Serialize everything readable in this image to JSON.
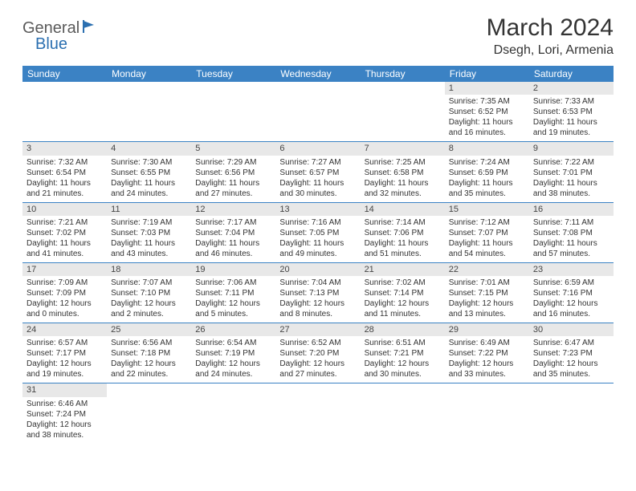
{
  "logo": {
    "part1": "General",
    "part2": "Blue"
  },
  "title": "March 2024",
  "location": "Dsegh, Lori, Armenia",
  "colors": {
    "header_bg": "#3b82c4",
    "header_fg": "#ffffff",
    "daynum_bg": "#e8e8e8",
    "border": "#3b82c4",
    "logo_gray": "#5a5a5a",
    "logo_blue": "#2b6fb0"
  },
  "day_headers": [
    "Sunday",
    "Monday",
    "Tuesday",
    "Wednesday",
    "Thursday",
    "Friday",
    "Saturday"
  ],
  "weeks": [
    [
      null,
      null,
      null,
      null,
      null,
      {
        "n": "1",
        "sr": "Sunrise: 7:35 AM",
        "ss": "Sunset: 6:52 PM",
        "dl1": "Daylight: 11 hours",
        "dl2": "and 16 minutes."
      },
      {
        "n": "2",
        "sr": "Sunrise: 7:33 AM",
        "ss": "Sunset: 6:53 PM",
        "dl1": "Daylight: 11 hours",
        "dl2": "and 19 minutes."
      }
    ],
    [
      {
        "n": "3",
        "sr": "Sunrise: 7:32 AM",
        "ss": "Sunset: 6:54 PM",
        "dl1": "Daylight: 11 hours",
        "dl2": "and 21 minutes."
      },
      {
        "n": "4",
        "sr": "Sunrise: 7:30 AM",
        "ss": "Sunset: 6:55 PM",
        "dl1": "Daylight: 11 hours",
        "dl2": "and 24 minutes."
      },
      {
        "n": "5",
        "sr": "Sunrise: 7:29 AM",
        "ss": "Sunset: 6:56 PM",
        "dl1": "Daylight: 11 hours",
        "dl2": "and 27 minutes."
      },
      {
        "n": "6",
        "sr": "Sunrise: 7:27 AM",
        "ss": "Sunset: 6:57 PM",
        "dl1": "Daylight: 11 hours",
        "dl2": "and 30 minutes."
      },
      {
        "n": "7",
        "sr": "Sunrise: 7:25 AM",
        "ss": "Sunset: 6:58 PM",
        "dl1": "Daylight: 11 hours",
        "dl2": "and 32 minutes."
      },
      {
        "n": "8",
        "sr": "Sunrise: 7:24 AM",
        "ss": "Sunset: 6:59 PM",
        "dl1": "Daylight: 11 hours",
        "dl2": "and 35 minutes."
      },
      {
        "n": "9",
        "sr": "Sunrise: 7:22 AM",
        "ss": "Sunset: 7:01 PM",
        "dl1": "Daylight: 11 hours",
        "dl2": "and 38 minutes."
      }
    ],
    [
      {
        "n": "10",
        "sr": "Sunrise: 7:21 AM",
        "ss": "Sunset: 7:02 PM",
        "dl1": "Daylight: 11 hours",
        "dl2": "and 41 minutes."
      },
      {
        "n": "11",
        "sr": "Sunrise: 7:19 AM",
        "ss": "Sunset: 7:03 PM",
        "dl1": "Daylight: 11 hours",
        "dl2": "and 43 minutes."
      },
      {
        "n": "12",
        "sr": "Sunrise: 7:17 AM",
        "ss": "Sunset: 7:04 PM",
        "dl1": "Daylight: 11 hours",
        "dl2": "and 46 minutes."
      },
      {
        "n": "13",
        "sr": "Sunrise: 7:16 AM",
        "ss": "Sunset: 7:05 PM",
        "dl1": "Daylight: 11 hours",
        "dl2": "and 49 minutes."
      },
      {
        "n": "14",
        "sr": "Sunrise: 7:14 AM",
        "ss": "Sunset: 7:06 PM",
        "dl1": "Daylight: 11 hours",
        "dl2": "and 51 minutes."
      },
      {
        "n": "15",
        "sr": "Sunrise: 7:12 AM",
        "ss": "Sunset: 7:07 PM",
        "dl1": "Daylight: 11 hours",
        "dl2": "and 54 minutes."
      },
      {
        "n": "16",
        "sr": "Sunrise: 7:11 AM",
        "ss": "Sunset: 7:08 PM",
        "dl1": "Daylight: 11 hours",
        "dl2": "and 57 minutes."
      }
    ],
    [
      {
        "n": "17",
        "sr": "Sunrise: 7:09 AM",
        "ss": "Sunset: 7:09 PM",
        "dl1": "Daylight: 12 hours",
        "dl2": "and 0 minutes."
      },
      {
        "n": "18",
        "sr": "Sunrise: 7:07 AM",
        "ss": "Sunset: 7:10 PM",
        "dl1": "Daylight: 12 hours",
        "dl2": "and 2 minutes."
      },
      {
        "n": "19",
        "sr": "Sunrise: 7:06 AM",
        "ss": "Sunset: 7:11 PM",
        "dl1": "Daylight: 12 hours",
        "dl2": "and 5 minutes."
      },
      {
        "n": "20",
        "sr": "Sunrise: 7:04 AM",
        "ss": "Sunset: 7:13 PM",
        "dl1": "Daylight: 12 hours",
        "dl2": "and 8 minutes."
      },
      {
        "n": "21",
        "sr": "Sunrise: 7:02 AM",
        "ss": "Sunset: 7:14 PM",
        "dl1": "Daylight: 12 hours",
        "dl2": "and 11 minutes."
      },
      {
        "n": "22",
        "sr": "Sunrise: 7:01 AM",
        "ss": "Sunset: 7:15 PM",
        "dl1": "Daylight: 12 hours",
        "dl2": "and 13 minutes."
      },
      {
        "n": "23",
        "sr": "Sunrise: 6:59 AM",
        "ss": "Sunset: 7:16 PM",
        "dl1": "Daylight: 12 hours",
        "dl2": "and 16 minutes."
      }
    ],
    [
      {
        "n": "24",
        "sr": "Sunrise: 6:57 AM",
        "ss": "Sunset: 7:17 PM",
        "dl1": "Daylight: 12 hours",
        "dl2": "and 19 minutes."
      },
      {
        "n": "25",
        "sr": "Sunrise: 6:56 AM",
        "ss": "Sunset: 7:18 PM",
        "dl1": "Daylight: 12 hours",
        "dl2": "and 22 minutes."
      },
      {
        "n": "26",
        "sr": "Sunrise: 6:54 AM",
        "ss": "Sunset: 7:19 PM",
        "dl1": "Daylight: 12 hours",
        "dl2": "and 24 minutes."
      },
      {
        "n": "27",
        "sr": "Sunrise: 6:52 AM",
        "ss": "Sunset: 7:20 PM",
        "dl1": "Daylight: 12 hours",
        "dl2": "and 27 minutes."
      },
      {
        "n": "28",
        "sr": "Sunrise: 6:51 AM",
        "ss": "Sunset: 7:21 PM",
        "dl1": "Daylight: 12 hours",
        "dl2": "and 30 minutes."
      },
      {
        "n": "29",
        "sr": "Sunrise: 6:49 AM",
        "ss": "Sunset: 7:22 PM",
        "dl1": "Daylight: 12 hours",
        "dl2": "and 33 minutes."
      },
      {
        "n": "30",
        "sr": "Sunrise: 6:47 AM",
        "ss": "Sunset: 7:23 PM",
        "dl1": "Daylight: 12 hours",
        "dl2": "and 35 minutes."
      }
    ],
    [
      {
        "n": "31",
        "sr": "Sunrise: 6:46 AM",
        "ss": "Sunset: 7:24 PM",
        "dl1": "Daylight: 12 hours",
        "dl2": "and 38 minutes."
      },
      null,
      null,
      null,
      null,
      null,
      null
    ]
  ]
}
